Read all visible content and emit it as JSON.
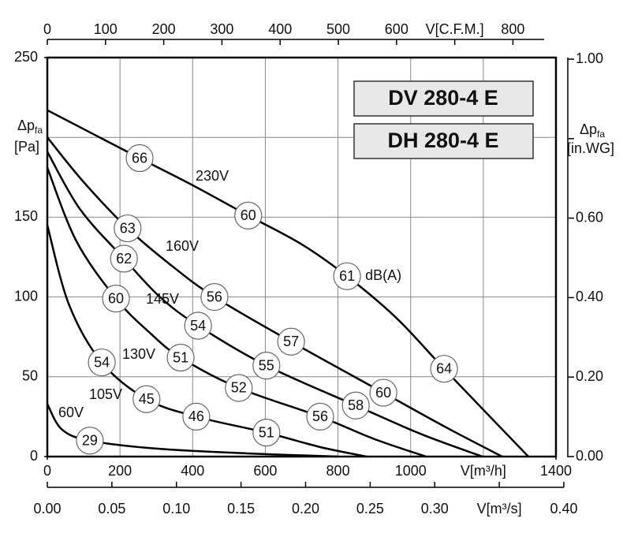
{
  "chart_data": {
    "type": "line",
    "titles": [
      "DV 280-4 E",
      "DH 280-4 E"
    ],
    "xlabel": "V[m³/h]",
    "xlim": [
      0,
      1400
    ],
    "xticks": [
      0,
      200,
      400,
      600,
      800,
      1000,
      {
        "value": 1200,
        "label": null
      },
      1400
    ],
    "x2label": "V[m³/s]",
    "x2lim": [
      0,
      0.4
    ],
    "x2ticks": [
      {
        "value": 0,
        "label": "0.00"
      },
      {
        "value": 0.05,
        "label": "0.05"
      },
      {
        "value": 0.1,
        "label": "0.10"
      },
      {
        "value": 0.15,
        "label": "0.15"
      },
      {
        "value": 0.2,
        "label": "0.20"
      },
      {
        "value": 0.25,
        "label": "0.25"
      },
      {
        "value": 0.3,
        "label": "0.30"
      },
      {
        "value": 0.35,
        "label": null
      },
      {
        "value": 0.4,
        "label": "0.40"
      }
    ],
    "x3label": "V[C.F.M.]",
    "x3lim": [
      0,
      836
    ],
    "x3ticks": [
      0,
      100,
      200,
      300,
      400,
      500,
      600,
      {
        "value": 700,
        "label": null
      },
      800
    ],
    "ylabel": {
      "symbol": "Δp",
      "sub": "fa",
      "unit": "[Pa]"
    },
    "ylim": [
      0,
      250
    ],
    "yticks": [
      0,
      50,
      100,
      150,
      {
        "value": 200,
        "label": null
      },
      250
    ],
    "y2label": {
      "symbol": "Δp",
      "sub": "fa",
      "unit": "[in.WG]"
    },
    "y2lim": [
      0,
      1.004
    ],
    "y2ticks": [
      {
        "value": 0,
        "label": "0.00"
      },
      {
        "value": 0.2,
        "label": "0.20"
      },
      {
        "value": 0.4,
        "label": "0.40"
      },
      {
        "value": 0.6,
        "label": "0.60"
      },
      {
        "value": 0.8,
        "label": null
      },
      {
        "value": 1.0,
        "label": "1.00"
      }
    ],
    "grid": true,
    "annotation": "dB(A)",
    "series": [
      {
        "name": "230V",
        "color": "#000000",
        "x": [
          0,
          254,
          400,
          553,
          700,
          825,
          960,
          1092,
          1210,
          1324
        ],
        "values": [
          217,
          187,
          170,
          151,
          133,
          113,
          87,
          55,
          27,
          0
        ],
        "db": [
          null,
          66,
          null,
          60,
          null,
          61,
          null,
          64,
          null,
          null
        ]
      },
      {
        "name": "160V",
        "color": "#000000",
        "x": [
          0,
          100,
          221,
          340,
          460,
          671,
          925,
          1100,
          1252
        ],
        "values": [
          200,
          172,
          143,
          120,
          100,
          72,
          40,
          18,
          0
        ],
        "db": [
          null,
          null,
          63,
          null,
          56,
          57,
          60,
          null,
          null
        ]
      },
      {
        "name": "145V",
        "color": "#000000",
        "x": [
          0,
          90,
          211,
          310,
          415,
          603,
          849,
          1030,
          1198
        ],
        "values": [
          191,
          155,
          124,
          100,
          82,
          57,
          32,
          14,
          0
        ],
        "db": [
          null,
          null,
          62,
          null,
          54,
          55,
          58,
          null,
          null
        ]
      },
      {
        "name": "130V",
        "color": "#000000",
        "x": [
          0,
          80,
          189,
          280,
          367,
          527,
          751,
          900,
          1042
        ],
        "values": [
          181,
          135,
          99,
          78,
          62,
          43,
          25,
          11,
          0
        ],
        "db": [
          null,
          null,
          60,
          null,
          51,
          52,
          56,
          null,
          null
        ]
      },
      {
        "name": "105V",
        "color": "#000000",
        "x": [
          0,
          60,
          150,
          273,
          410,
          603,
          750,
          879
        ],
        "values": [
          145,
          95,
          59,
          36,
          25,
          15,
          6,
          0
        ],
        "db": [
          null,
          null,
          54,
          45,
          46,
          51,
          null,
          null
        ]
      },
      {
        "name": "60V",
        "color": "#000000",
        "x": [
          0,
          40,
          117,
          300,
          550,
          800
        ],
        "values": [
          33,
          17,
          10,
          5,
          2,
          0
        ],
        "db": [
          null,
          null,
          29,
          null,
          null,
          null
        ]
      }
    ]
  }
}
